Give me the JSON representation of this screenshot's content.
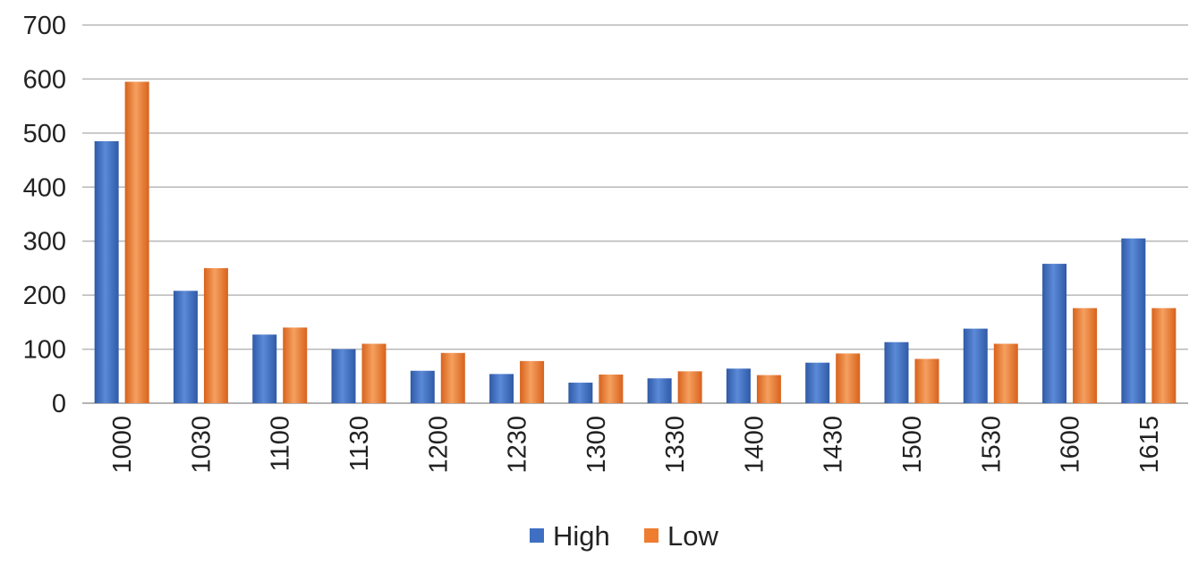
{
  "chart_data": {
    "type": "bar",
    "title": "",
    "xlabel": "",
    "ylabel": "",
    "categories": [
      "1000",
      "1030",
      "1100",
      "1130",
      "1200",
      "1230",
      "1300",
      "1330",
      "1400",
      "1430",
      "1500",
      "1530",
      "1600",
      "1615"
    ],
    "series": [
      {
        "name": "High",
        "color": "#3e6fc2",
        "values": [
          485,
          208,
          127,
          100,
          60,
          54,
          38,
          46,
          64,
          75,
          113,
          138,
          258,
          305
        ]
      },
      {
        "name": "Low",
        "color": "#ee7d31",
        "values": [
          595,
          250,
          140,
          110,
          93,
          78,
          53,
          59,
          52,
          92,
          82,
          110,
          176,
          176
        ]
      }
    ],
    "ylim": [
      0,
      700
    ],
    "yticks": [
      "0",
      "100",
      "200",
      "300",
      "400",
      "500",
      "600",
      "700"
    ],
    "grid": true,
    "legend_position": "bottom"
  }
}
